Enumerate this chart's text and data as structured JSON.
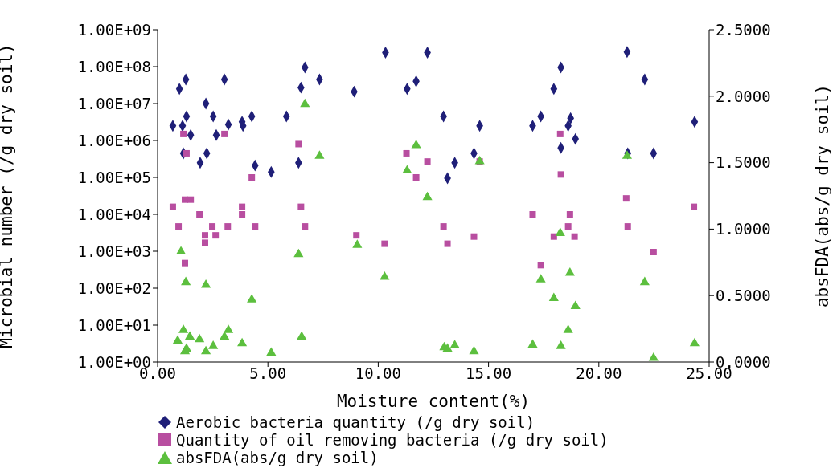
{
  "chart_data": {
    "type": "scatter",
    "xlabel": "Moisture content(%)",
    "ylabel": "Microbial number (/g dry soil)",
    "y2label": "absFDA(abs/g dry soil)",
    "log": "y",
    "legend": "bottom",
    "xlim": [
      0,
      25
    ],
    "xticks": [
      {
        "value": 0,
        "label": "0.00"
      },
      {
        "value": 5,
        "label": "5.00"
      },
      {
        "value": 10,
        "label": "10.00"
      },
      {
        "value": 15,
        "label": "15.00"
      },
      {
        "value": 20,
        "label": "20.00"
      },
      {
        "value": 25,
        "label": "25.00"
      }
    ],
    "ylim": [
      1,
      1000000000
    ],
    "yticks": [
      {
        "value": 1,
        "label": "1.00E+00"
      },
      {
        "value": 10,
        "label": "1.00E+01"
      },
      {
        "value": 100,
        "label": "1.00E+02"
      },
      {
        "value": 1000,
        "label": "1.00E+03"
      },
      {
        "value": 10000,
        "label": "1.00E+04"
      },
      {
        "value": 100000,
        "label": "1.00E+05"
      },
      {
        "value": 1000000,
        "label": "1.00E+06"
      },
      {
        "value": 10000000,
        "label": "1.00E+07"
      },
      {
        "value": 100000000,
        "label": "1.00E+08"
      },
      {
        "value": 1000000000,
        "label": "1.00E+09"
      }
    ],
    "y2lim": [
      0,
      2.5
    ],
    "y2ticks": [
      {
        "value": 0,
        "label": "0.0000"
      },
      {
        "value": 0.5,
        "label": "0.5000"
      },
      {
        "value": 1,
        "label": "1.0000"
      },
      {
        "value": 1.5,
        "label": "1.5000"
      },
      {
        "value": 2,
        "label": "2.0000"
      },
      {
        "value": 2.5,
        "label": "2.5000"
      }
    ],
    "series": [
      {
        "name": "Aerobic bacteria quantity (/g dry soil)",
        "color": "#1f1f78",
        "marker": "diamond",
        "x": [
          0.69,
          0.99,
          1.28,
          1.31,
          1.5,
          1.17,
          1.13,
          2.19,
          2.52,
          2.66,
          2.23,
          1.93,
          3.03,
          3.21,
          3.83,
          3.87,
          4.27,
          4.42,
          5.15,
          5.84,
          6.39,
          6.5,
          6.68,
          7.34,
          8.91,
          10.33,
          12.23,
          11.31,
          11.72,
          12.96,
          13.14,
          13.47,
          14.6,
          14.34,
          18.28,
          17.96,
          17.0,
          17.37,
          18.72,
          18.61,
          18.94,
          18.28,
          21.28,
          22.08,
          21.31,
          22.48,
          24.34
        ],
        "values": [
          2500000,
          25000000,
          45000000,
          4500000,
          1400000,
          450000,
          2500000,
          10000000,
          4500000,
          1400000,
          450000,
          250000,
          45000000,
          2700000,
          3200000,
          2500000,
          4500000,
          210000,
          140000,
          4500000,
          250000,
          27000000,
          95000000,
          45000000,
          21000000,
          240000000,
          240000000,
          25000000,
          40000000,
          4500000,
          95000,
          250000,
          2500000,
          450000,
          95000000,
          25000000,
          2500000,
          4500000,
          4000000,
          2500000,
          1100000,
          630000,
          250000000,
          45000000,
          450000,
          450000,
          3200000
        ]
      },
      {
        "name": "Quantity of oil removing bacteria (/g dry soil)",
        "color": "#b84ea0",
        "marker": "square",
        "x": [
          1.17,
          3.03,
          1.31,
          6.39,
          4.27,
          0.69,
          1.24,
          1.5,
          1.9,
          0.95,
          2.48,
          2.15,
          2.63,
          2.15,
          3.18,
          3.83,
          3.83,
          4.42,
          6.5,
          6.68,
          1.24,
          9.01,
          10.29,
          11.28,
          12.23,
          11.72,
          12.96,
          13.14,
          14.34,
          14.6,
          18.25,
          18.28,
          17.0,
          18.69,
          18.61,
          17.96,
          18.9,
          17.37,
          21.24,
          21.31,
          22.48,
          24.31
        ],
        "values": [
          1500000,
          1500000,
          450000,
          800000,
          100000,
          16000,
          25000,
          25000,
          10000,
          4700,
          4700,
          2700,
          2700,
          1700,
          4700,
          16000,
          10000,
          4700,
          16000,
          4700,
          480,
          2700,
          1600,
          450000,
          270000,
          100000,
          4700,
          1600,
          2500,
          270000,
          1500000,
          120000,
          10000,
          10000,
          4700,
          2500,
          2500,
          420,
          27000,
          4700,
          950,
          16000
        ]
      },
      {
        "name": "absFDA(abs/g dry soil)",
        "color": "#5cbf3e",
        "marker": "triangle",
        "axis": "y2",
        "x": [
          1.06,
          6.68,
          7.34,
          6.39,
          1.28,
          2.19,
          4.27,
          1.17,
          0.91,
          1.46,
          1.9,
          1.24,
          1.31,
          2.19,
          2.52,
          3.03,
          3.21,
          3.83,
          5.15,
          6.53,
          9.05,
          10.29,
          11.72,
          11.31,
          12.23,
          14.6,
          12.99,
          13.14,
          13.47,
          14.34,
          21.28,
          18.25,
          17.37,
          18.69,
          22.08,
          17.96,
          18.94,
          18.61,
          17.0,
          18.28,
          22.48,
          24.34
        ],
        "values": [
          0.83,
          1.94,
          1.55,
          0.81,
          0.6,
          0.58,
          0.47,
          0.24,
          0.16,
          0.19,
          0.17,
          0.08,
          0.1,
          0.08,
          0.12,
          0.19,
          0.24,
          0.14,
          0.07,
          0.19,
          0.88,
          0.64,
          1.63,
          1.44,
          1.24,
          1.51,
          0.11,
          0.1,
          0.125,
          0.08,
          1.55,
          0.97,
          0.62,
          0.67,
          0.6,
          0.48,
          0.42,
          0.24,
          0.13,
          0.12,
          0.03,
          0.14
        ]
      }
    ]
  }
}
